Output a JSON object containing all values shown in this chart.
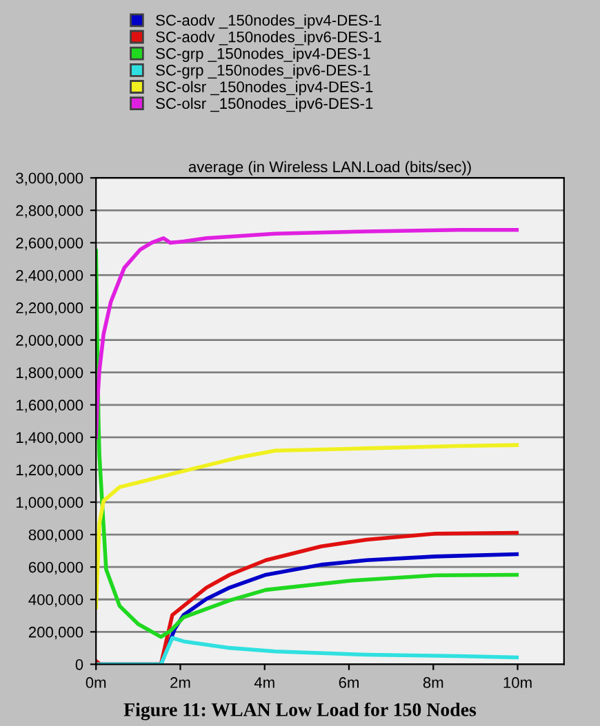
{
  "chart_data": {
    "type": "line",
    "title": "average (in Wireless LAN.Load (bits/sec))",
    "xlim": [
      0,
      11.1
    ],
    "ylim": [
      0,
      3000000
    ],
    "xticks": [
      {
        "value": 0,
        "label": "0m"
      },
      {
        "value": 2,
        "label": "2m"
      },
      {
        "value": 4,
        "label": "4m"
      },
      {
        "value": 6,
        "label": "6m"
      },
      {
        "value": 8,
        "label": "8m"
      },
      {
        "value": 10,
        "label": "10m"
      }
    ],
    "yticks": [
      {
        "value": 0,
        "label": "0"
      },
      {
        "value": 200000,
        "label": "200,000"
      },
      {
        "value": 400000,
        "label": "400,000"
      },
      {
        "value": 600000,
        "label": "600,000"
      },
      {
        "value": 800000,
        "label": "800,000"
      },
      {
        "value": 1000000,
        "label": "1,000,000"
      },
      {
        "value": 1200000,
        "label": "1,200,000"
      },
      {
        "value": 1400000,
        "label": "1,400,000"
      },
      {
        "value": 1600000,
        "label": "1,600,000"
      },
      {
        "value": 1800000,
        "label": "1,800,000"
      },
      {
        "value": 2000000,
        "label": "2,000,000"
      },
      {
        "value": 2200000,
        "label": "2,200,000"
      },
      {
        "value": 2400000,
        "label": "2,400,000"
      },
      {
        "value": 2600000,
        "label": "2,600,000"
      },
      {
        "value": 2800000,
        "label": "2,800,000"
      },
      {
        "value": 3000000,
        "label": "3,000,000"
      }
    ],
    "grid": "y",
    "legend": "top",
    "line_style": "solid",
    "annotations": [
      "Figure 11: WLAN Low Load for 150 Nodes"
    ],
    "series": [
      {
        "name": "SC-aodv _150nodes_ipv4-DES-1",
        "color": "#0000c8",
        "x": [
          0,
          1.54,
          1.87,
          2.08,
          2.62,
          3.17,
          4.03,
          5.34,
          6.42,
          8.05,
          9.98
        ],
        "values": [
          0,
          0,
          220000,
          304000,
          403000,
          473000,
          552000,
          614000,
          642000,
          665000,
          679000
        ]
      },
      {
        "name": "SC-aodv _150nodes_ipv6-DES-1",
        "color": "#e01010",
        "x": [
          0,
          0.1,
          1.54,
          1.81,
          2.08,
          2.62,
          3.17,
          4.03,
          5.34,
          6.42,
          8.05,
          9.98
        ],
        "values": [
          20000,
          0,
          0,
          304000,
          360000,
          473000,
          552000,
          642000,
          727000,
          769000,
          806000,
          811000
        ]
      },
      {
        "name": "SC-grp _150nodes_ipv4-DES-1",
        "color": "#20d820",
        "x": [
          0,
          0.03,
          0.06,
          0.08,
          0.24,
          0.56,
          1.0,
          1.54,
          1.76,
          2.08,
          3.17,
          4.03,
          6.0,
          8.05,
          9.98
        ],
        "values": [
          2550000,
          2000000,
          1500000,
          1290000,
          586000,
          360000,
          248000,
          169000,
          205000,
          290000,
          394000,
          459000,
          515000,
          549000,
          552000
        ]
      },
      {
        "name": "SC-grp _150nodes_ipv6-DES-1",
        "color": "#30e0e0",
        "x": [
          0,
          1.54,
          1.81,
          2.08,
          3.17,
          4.25,
          6.42,
          8.6,
          9.98
        ],
        "values": [
          0,
          0,
          163000,
          141000,
          101000,
          79000,
          59000,
          51000,
          42000
        ]
      },
      {
        "name": "SC-olsr _150nodes_ipv4-DES-1",
        "color": "#f0f020",
        "x": [
          0,
          0.08,
          0.18,
          0.56,
          1.0,
          2.08,
          3.17,
          3.4,
          4.25,
          6.42,
          8.6,
          9.98
        ],
        "values": [
          350000,
          868000,
          1008000,
          1093000,
          1121000,
          1192000,
          1262000,
          1276000,
          1318000,
          1332000,
          1346000,
          1352000
        ]
      },
      {
        "name": "SC-olsr _150nodes_ipv6-DES-1",
        "color": "#e020e0",
        "x": [
          0,
          0.03,
          0.08,
          0.18,
          0.35,
          0.67,
          1.05,
          1.32,
          1.6,
          1.76,
          2.08,
          2.62,
          4.25,
          6.42,
          8.6,
          9.98
        ],
        "values": [
          1400000,
          1600000,
          1811000,
          2037000,
          2234000,
          2445000,
          2558000,
          2600000,
          2628000,
          2600000,
          2608000,
          2628000,
          2656000,
          2670000,
          2679000,
          2679000
        ]
      }
    ]
  }
}
